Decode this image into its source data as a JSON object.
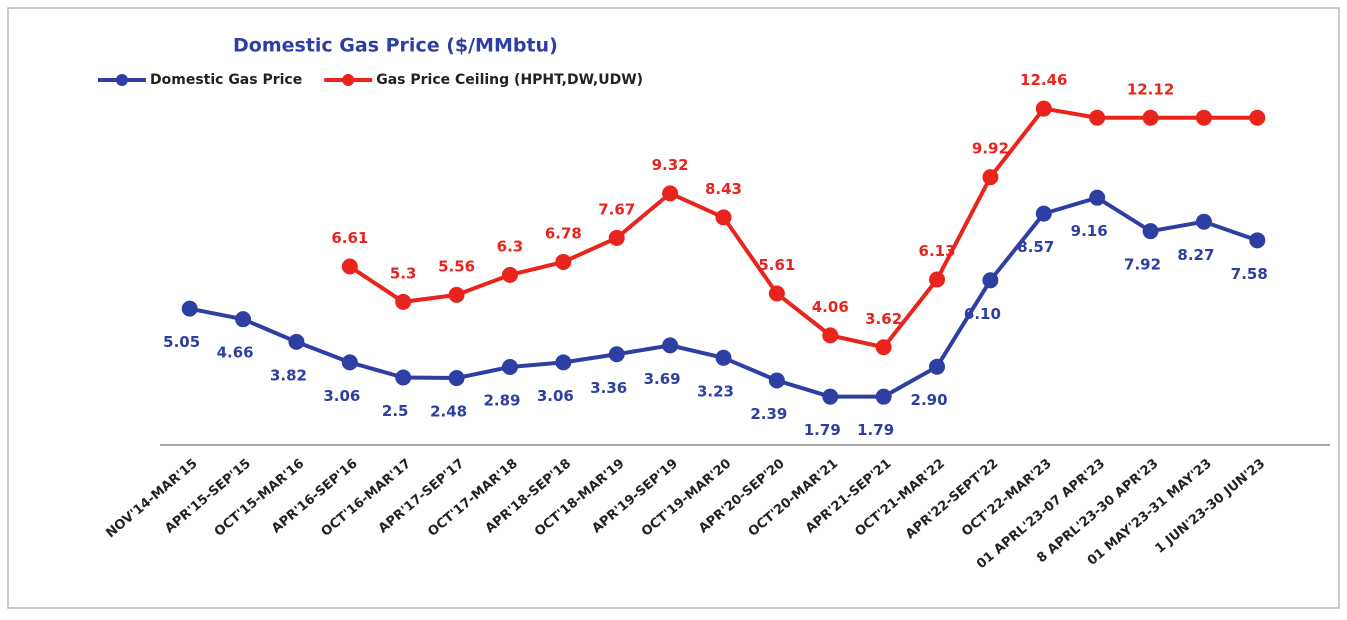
{
  "chart_data": {
    "type": "line",
    "title": "Domestic Gas Price ($/MMbtu)",
    "categories": [
      "NOV'14-MAR'15",
      "APR'15-SEP'15",
      "OCT'15-MAR'16",
      "APR'16-SEP'16",
      "OCT'16-MAR'17",
      "APR'17-SEP'17",
      "OCT'17-MAR'18",
      "APR'18-SEP'18",
      "OCT'18-MAR'19",
      "APR'19-SEP'19",
      "OCT'19-MAR'20",
      "APR'20-SEP'20",
      "OCT'20-MAR'21",
      "APR'21-SEP'21",
      "OCT'21-MAR'22",
      "APR'22-SEPT'22",
      "OCT'22-MAR'23",
      "01 APRL'23-07 APR'23",
      "8 APRL'23-30 APR'23",
      "01 MAY'23-31 MAY'23",
      "1 JUN'23-30 JUN'23"
    ],
    "series": [
      {
        "name": "Domestic Gas Price",
        "color": "#2e3fa3",
        "values": [
          5.05,
          4.66,
          3.82,
          3.06,
          2.5,
          2.48,
          2.89,
          3.06,
          3.36,
          3.69,
          3.23,
          2.39,
          1.79,
          1.79,
          2.9,
          6.1,
          8.57,
          9.16,
          7.92,
          8.27,
          7.58
        ],
        "value_labels": [
          "5.05",
          "4.66",
          "3.82",
          "3.06",
          "2.5",
          "2.48",
          "2.89",
          "3.06",
          "3.36",
          "3.69",
          "3.23",
          "2.39",
          "1.79",
          "1.79",
          "2.90",
          "6.10",
          "8.57",
          "9.16",
          "7.92",
          "8.27",
          "7.58"
        ]
      },
      {
        "name": "Gas Price Ceiling (HPHT,DW,UDW)",
        "color": "#e8241c",
        "values": [
          null,
          null,
          null,
          6.61,
          5.3,
          5.56,
          6.3,
          6.78,
          7.67,
          9.32,
          8.43,
          5.61,
          4.06,
          3.62,
          6.13,
          9.92,
          12.46,
          12.12,
          12.12,
          12.12,
          12.12
        ],
        "value_labels": [
          null,
          null,
          null,
          "6.61",
          "5.3",
          "5.56",
          "6.3",
          "6.78",
          "7.67",
          "9.32",
          "8.43",
          "5.61",
          "4.06",
          "3.62",
          "6.13",
          "9.92",
          "12.46",
          null,
          "12.12",
          null,
          null
        ]
      }
    ],
    "ylim": [
      0,
      14
    ]
  }
}
